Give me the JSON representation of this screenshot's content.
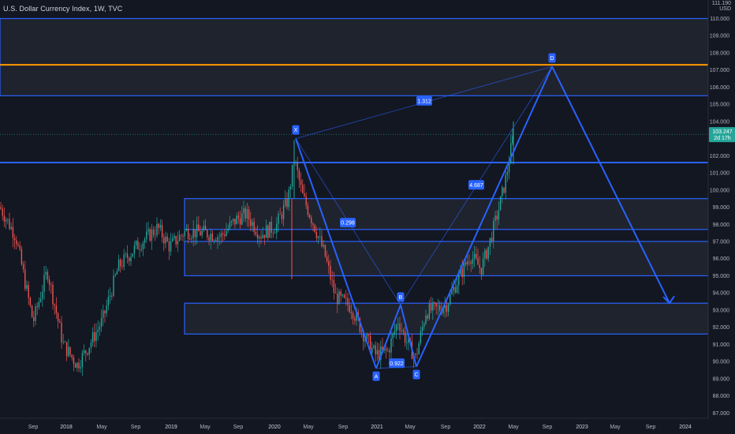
{
  "header": {
    "title": "U.S. Dollar Currency Index, 1W, TVC"
  },
  "price_axis": {
    "unit": "USD",
    "top_value": "111.190",
    "labels": [
      "110.000",
      "109.000",
      "108.000",
      "107.000",
      "106.000",
      "105.000",
      "104.000",
      "102.000",
      "101.000",
      "100.000",
      "99.000",
      "98.000",
      "97.000",
      "96.000",
      "95.000",
      "94.000",
      "93.000",
      "92.000",
      "91.000",
      "90.000",
      "89.000",
      "88.000",
      "87.000"
    ],
    "current_price": "103.247",
    "current_change": "2d 17h"
  },
  "time_axis": {
    "labels": [
      {
        "text": "Sep",
        "year": false
      },
      {
        "text": "2018",
        "year": true
      },
      {
        "text": "May",
        "year": false
      },
      {
        "text": "Sep",
        "year": false
      },
      {
        "text": "2019",
        "year": true
      },
      {
        "text": "May",
        "year": false
      },
      {
        "text": "Sep",
        "year": false
      },
      {
        "text": "2020",
        "year": true
      },
      {
        "text": "May",
        "year": false
      },
      {
        "text": "Sep",
        "year": false
      },
      {
        "text": "2021",
        "year": true
      },
      {
        "text": "May",
        "year": false
      },
      {
        "text": "Sep",
        "year": false
      },
      {
        "text": "2022",
        "year": true
      },
      {
        "text": "May",
        "year": false
      },
      {
        "text": "Sep",
        "year": false
      },
      {
        "text": "2023",
        "year": true
      },
      {
        "text": "May",
        "year": false
      },
      {
        "text": "Sep",
        "year": false
      },
      {
        "text": "2024",
        "year": true
      }
    ]
  },
  "pattern": {
    "points": [
      "X",
      "A",
      "B",
      "C",
      "D"
    ],
    "ratios": [
      "0.298",
      "0.922",
      "4.687",
      "1.312"
    ]
  },
  "colors": {
    "background": "#131722",
    "up_candle": "#26a69a",
    "down_candle": "#ef5350",
    "pattern_line": "#2962ff",
    "level_line": "#2962ff",
    "highlight_level": "#ff9800",
    "label_bg": "#2962ff"
  }
}
